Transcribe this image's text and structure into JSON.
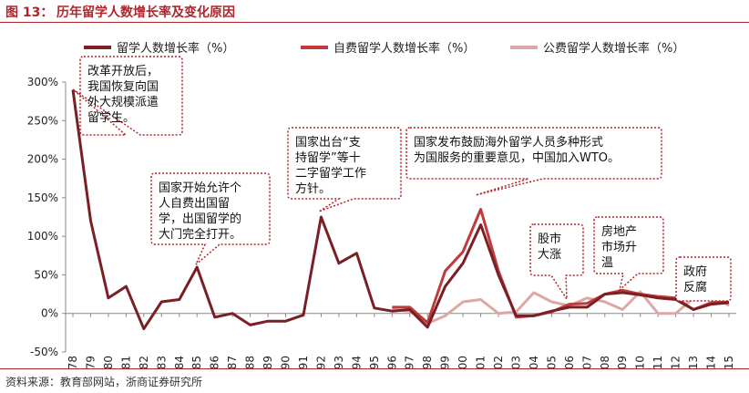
{
  "header": {
    "figure_label": "图 13：",
    "title": "历年留学人数增长率及变化原因"
  },
  "footer": {
    "source": "资料来源：教育部网站，浙商证券研究所"
  },
  "colors": {
    "total": "#7a1f24",
    "self": "#c0393b",
    "public": "#dba8a6",
    "accent": "#b0252b"
  },
  "chart_data": {
    "type": "line",
    "x": [
      "1978",
      "1979",
      "1980",
      "1981",
      "1982",
      "1983",
      "1984",
      "1985",
      "1986",
      "1987",
      "1988",
      "1989",
      "1990",
      "1991",
      "1992",
      "1993",
      "1994",
      "1995",
      "1996",
      "1997",
      "1998",
      "1999",
      "2000",
      "2001",
      "2002",
      "2003",
      "2004",
      "2005",
      "2006",
      "2007",
      "2008",
      "2009",
      "2010",
      "2011",
      "2012",
      "2013",
      "2014",
      "2015"
    ],
    "ylim": [
      -50,
      300
    ],
    "yticks": [
      "300%",
      "250%",
      "200%",
      "150%",
      "100%",
      "50%",
      "0%",
      "-50%"
    ],
    "ytick_values": [
      300,
      250,
      200,
      150,
      100,
      50,
      0,
      -50
    ],
    "grid": false,
    "legend_position": "top",
    "series": [
      {
        "name": "留学人数增长率（%）",
        "key": "total",
        "values": [
          290,
          120,
          20,
          35,
          -20,
          15,
          18,
          60,
          -5,
          0,
          -15,
          -10,
          -10,
          -2,
          125,
          65,
          78,
          7,
          3,
          5,
          -18,
          35,
          65,
          115,
          50,
          -3,
          -3,
          3,
          8,
          8,
          25,
          27,
          24,
          20,
          18,
          5,
          12,
          14
        ]
      },
      {
        "name": "自费留学人数增长率（%）",
        "key": "self",
        "values": [
          null,
          null,
          null,
          null,
          null,
          null,
          null,
          null,
          null,
          null,
          null,
          null,
          null,
          null,
          null,
          null,
          null,
          null,
          8,
          8,
          -12,
          55,
          80,
          135,
          55,
          -5,
          -3,
          2,
          12,
          13,
          25,
          30,
          25,
          22,
          20,
          5,
          14,
          15
        ]
      },
      {
        "name": "公费留学人数增长率（%）",
        "key": "public",
        "values": [
          null,
          null,
          null,
          null,
          null,
          null,
          null,
          null,
          null,
          null,
          null,
          null,
          null,
          null,
          null,
          null,
          null,
          null,
          5,
          3,
          -13,
          -3,
          15,
          18,
          0,
          2,
          27,
          15,
          10,
          20,
          15,
          5,
          28,
          0,
          0,
          20,
          25,
          10
        ]
      }
    ],
    "annotations": [
      {
        "id": "a1978",
        "text": "改革开放后，\n我国恢复向国\n外大规模派遣\n留学生。"
      },
      {
        "id": "a1985",
        "text": "国家开始允许个\n人自费出国留\n学，出国留学的\n大门完全打开。"
      },
      {
        "id": "a1992",
        "text": "国家出台“支\n持留学”等十\n二字留学工作\n方针。"
      },
      {
        "id": "a2001",
        "text": "国家发布鼓励海外留学人员多种形式\n为国服务的重要意见，中国加入WTO。"
      },
      {
        "id": "a2006",
        "text": "股市\n大涨"
      },
      {
        "id": "a2009",
        "text": "房地产\n市场升\n温"
      },
      {
        "id": "a2014",
        "text": "政府\n反腐"
      }
    ]
  }
}
